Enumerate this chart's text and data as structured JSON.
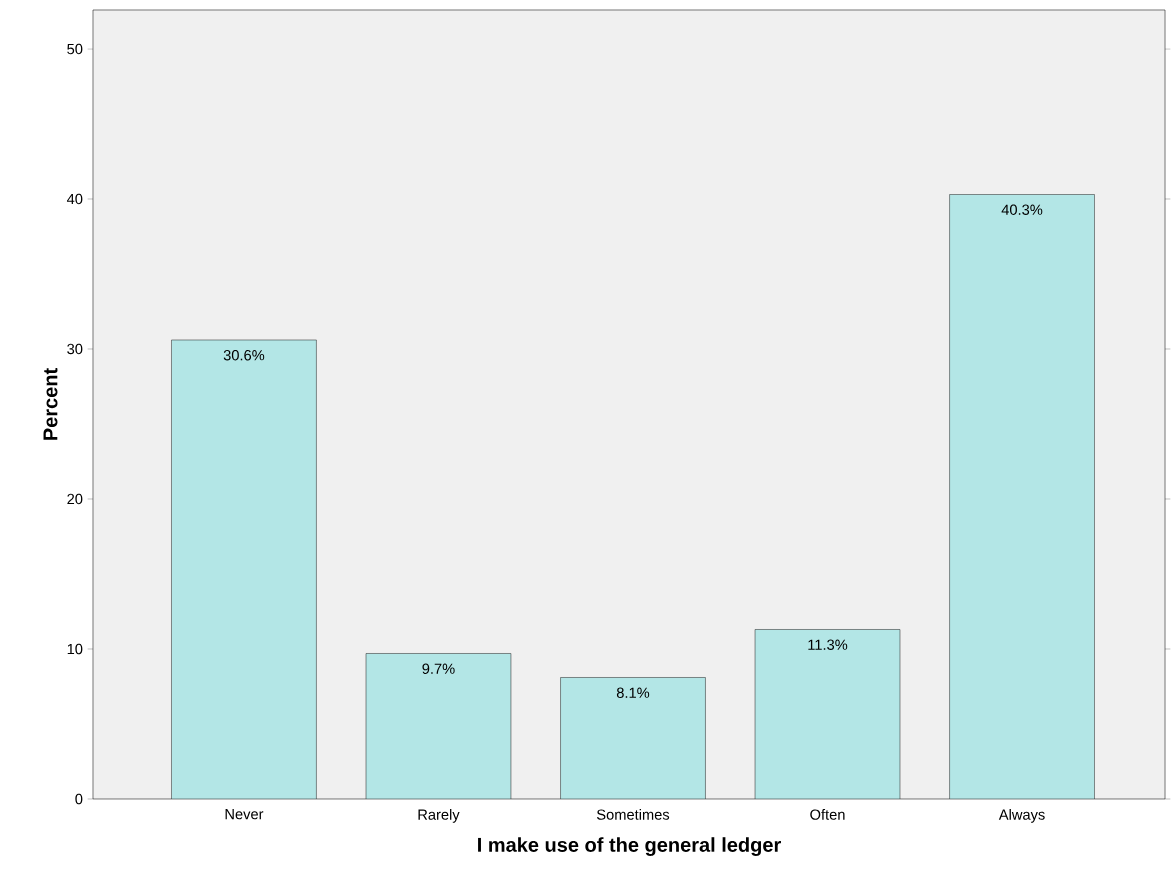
{
  "chart_data": {
    "type": "bar",
    "xlabel": "I make use of the general ledger",
    "ylabel": "Percent",
    "categories": [
      "Never",
      "Rarely",
      "Sometimes",
      "Often",
      "Always"
    ],
    "values": [
      30.6,
      9.7,
      8.1,
      11.3,
      40.3
    ],
    "value_labels": [
      "30.6%",
      "9.7%",
      "8.1%",
      "11.3%",
      "40.3%"
    ],
    "color": "#b3e6e6",
    "ylim": [
      0,
      52.6
    ],
    "yticks": [
      0,
      10,
      20,
      30,
      40,
      50
    ]
  }
}
